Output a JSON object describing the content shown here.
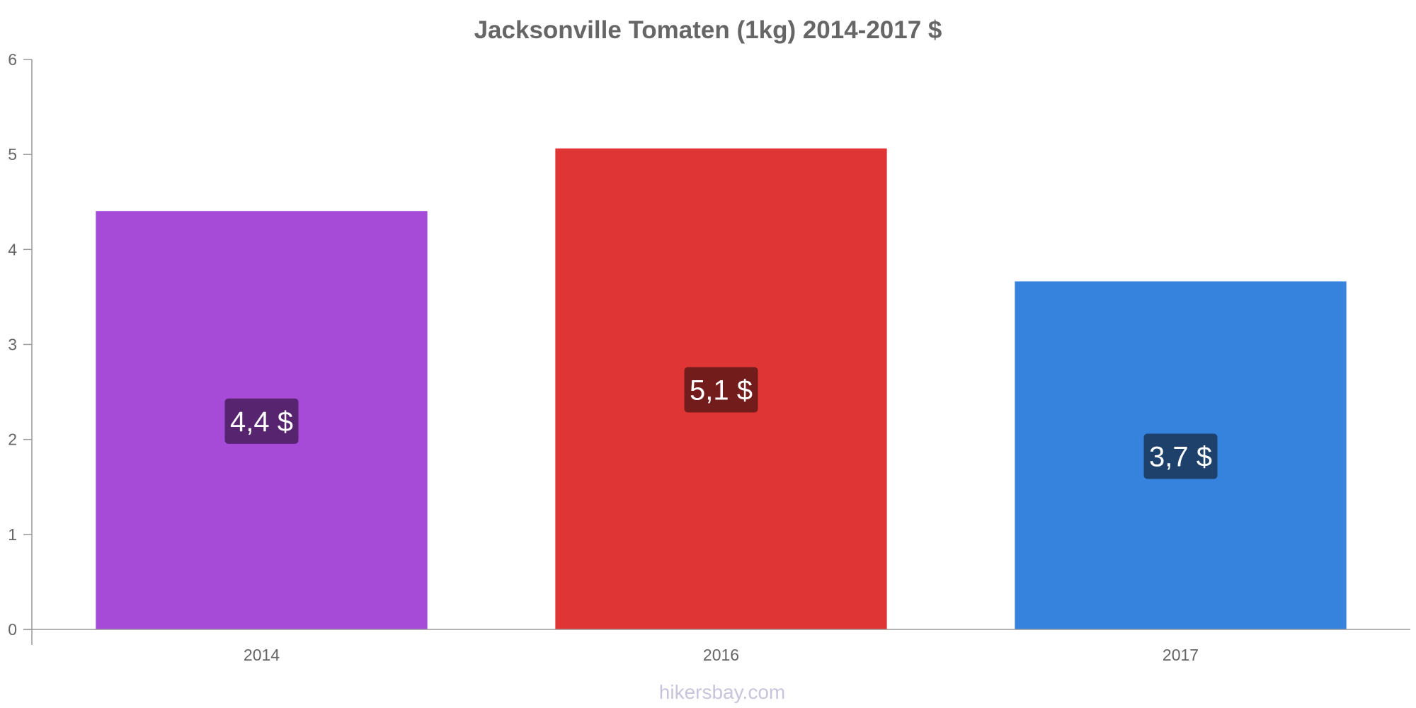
{
  "chart_data": {
    "type": "bar",
    "title": "Jacksonville Tomaten (1kg) 2014-2017 $",
    "categories": [
      "2014",
      "2016",
      "2017"
    ],
    "values": [
      4.4,
      5.06,
      3.66
    ],
    "value_labels": [
      "4,4 $",
      "5,1 $",
      "3,7 $"
    ],
    "bar_colors": [
      "#a64ad8",
      "#e03535",
      "#3683dd"
    ],
    "label_box_colors": [
      "#57246f",
      "#731c1c",
      "#1d416b"
    ],
    "ylim": [
      0,
      6
    ],
    "yticks": [
      "0",
      "1",
      "2",
      "3",
      "4",
      "5",
      "6"
    ],
    "xlabel": "",
    "ylabel": "",
    "grid": false,
    "legend": "none"
  },
  "watermark": "hikersbay.com",
  "colors": {
    "axis": "#999999",
    "text": "#666666",
    "background": "#ffffff"
  }
}
